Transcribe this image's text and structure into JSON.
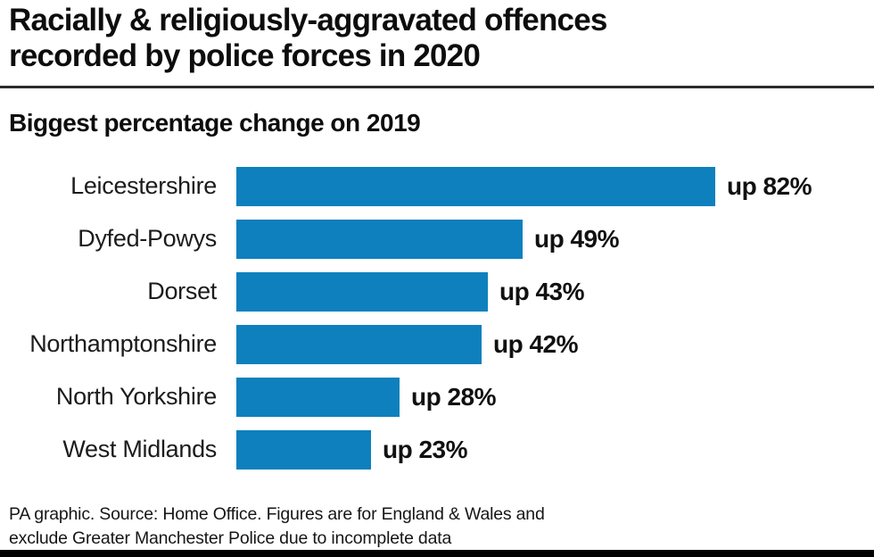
{
  "header": {
    "title_line1": "Racially & religiously-aggravated offences",
    "title_line2": "recorded by police forces in 2020",
    "subtitle": "Biggest percentage change on 2019"
  },
  "footer": {
    "line1": "PA graphic. Source: Home Office. Figures are for England & Wales and",
    "line2": "exclude Greater Manchester Police due to incomplete data"
  },
  "colors": {
    "bar_blue": "#0e80bd",
    "title_black": "#0d0d0d",
    "bottom_strip_black": "#000000"
  },
  "chart_data": {
    "type": "bar",
    "orientation": "horizontal",
    "title": "Racially & religiously-aggravated offences recorded by police forces in 2020",
    "subtitle": "Biggest percentage change on 2019",
    "categories": [
      "Leicestershire",
      "Dyfed-Powys",
      "Dorset",
      "Northamptonshire",
      "North Yorkshire",
      "West Midlands"
    ],
    "values": [
      82,
      49,
      43,
      42,
      28,
      23
    ],
    "value_labels": [
      "up 82%",
      "up 49%",
      "up 43%",
      "up 42%",
      "up 28%",
      "up 23%"
    ],
    "xlim": [
      0,
      82
    ],
    "grid": false,
    "legend": false,
    "bar_color": "#0e80bd",
    "source_note": "PA graphic. Source: Home Office. Figures are for England & Wales and exclude Greater Manchester Police due to incomplete data"
  }
}
